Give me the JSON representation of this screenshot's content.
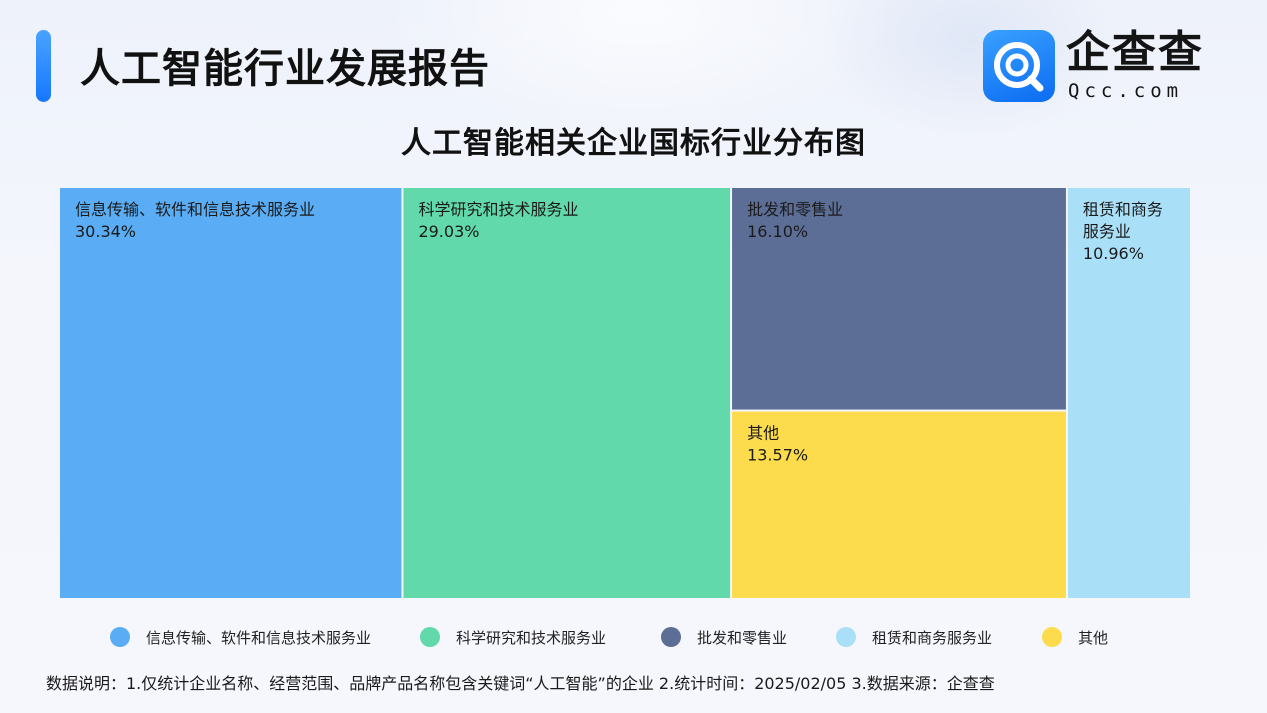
{
  "header": {
    "title": "人工智能行业发展报告",
    "logo_cn": "企查查",
    "logo_en": "Qcc.com"
  },
  "colors": {
    "accent": "#1677ff"
  },
  "chart_data": {
    "type": "treemap",
    "title": "人工智能相关企业国标行业分布图",
    "legend_position": "bottom",
    "series": [
      {
        "name": "信息传输、软件和信息技术服务业",
        "tile_label": [
          "信息传输、软件和信息技术服务业"
        ],
        "percent_label": "30.34%",
        "value": 30.34,
        "color": "#5aacf4"
      },
      {
        "name": "科学研究和技术服务业",
        "tile_label": [
          "科学研究和技术服务业"
        ],
        "percent_label": "29.03%",
        "value": 29.03,
        "color": "#61d9aa"
      },
      {
        "name": "批发和零售业",
        "tile_label": [
          "批发和零售业"
        ],
        "percent_label": "16.10%",
        "value": 16.1,
        "color": "#5c6e96"
      },
      {
        "name": "租赁和商务服务业",
        "tile_label": [
          "租赁和商务",
          "服务业"
        ],
        "percent_label": "10.96%",
        "value": 10.96,
        "color": "#aadff8"
      },
      {
        "name": "其他",
        "tile_label": [
          "其他"
        ],
        "percent_label": "13.57%",
        "value": 13.57,
        "color": "#fcdb4c"
      }
    ]
  },
  "legend": {
    "items": [
      {
        "label": "信息传输、软件和信息技术服务业",
        "color": "#5aacf4"
      },
      {
        "label": "科学研究和技术服务业",
        "color": "#61d9aa"
      },
      {
        "label": "批发和零售业",
        "color": "#5c6e96"
      },
      {
        "label": "租赁和商务服务业",
        "color": "#aadff8"
      },
      {
        "label": "其他",
        "color": "#fcdb4c"
      }
    ]
  },
  "footnote": "数据说明：1.仅统计企业名称、经营范围、品牌产品名称包含关键词“人工智能”的企业   2.统计时间：2025/02/05   3.数据来源：企查查"
}
